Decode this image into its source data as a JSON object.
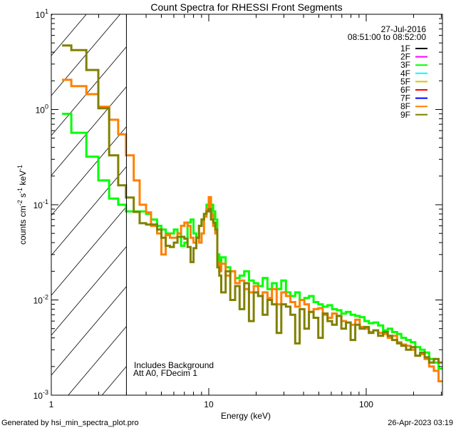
{
  "chart_data": {
    "type": "line",
    "title": "Count Spectra for RHESSI Front Segments",
    "xlabel": "Energy (keV)",
    "ylabel": "counts cm",
    "ylabel_parts": [
      "counts cm",
      "-2",
      " s",
      "-1",
      " keV",
      "-1"
    ],
    "xscale": "log",
    "yscale": "log",
    "xlim": [
      1,
      305
    ],
    "ylim": [
      0.001,
      10
    ],
    "x_ticks": [
      {
        "value": 1,
        "label": "1"
      },
      {
        "value": 10,
        "label": "10"
      },
      {
        "value": 100,
        "label": "100"
      }
    ],
    "y_ticks": [
      {
        "value": 10,
        "base": "10",
        "exp": "1"
      },
      {
        "value": 1,
        "base": "10",
        "exp": "0"
      },
      {
        "value": 0.1,
        "base": "10",
        "exp": "-1"
      },
      {
        "value": 0.01,
        "base": "10",
        "exp": "-2"
      },
      {
        "value": 0.001,
        "base": "10",
        "exp": "-3"
      }
    ],
    "date": "27-Jul-2016",
    "time_range": "08:51:00 to 08:52:00",
    "excluded_region_keV": [
      1,
      3
    ],
    "annotations": [
      "Includes Background",
      "Att A0, FDecim 1"
    ],
    "legend_placement": "top-right",
    "legend": [
      {
        "name": "1F",
        "color": "#000000"
      },
      {
        "name": "2F",
        "color": "#ff00ff"
      },
      {
        "name": "3F",
        "color": "#00ff00"
      },
      {
        "name": "4F",
        "color": "#00ffff"
      },
      {
        "name": "5F",
        "color": "#cccc00"
      },
      {
        "name": "6F",
        "color": "#ff0000"
      },
      {
        "name": "7F",
        "color": "#0000ff"
      },
      {
        "name": "8F",
        "color": "#ff8000"
      },
      {
        "name": "9F",
        "color": "#808000"
      }
    ],
    "energy_edges": [
      1.17,
      1.34,
      1.67,
      1.99,
      2.33,
      2.66,
      2.98,
      3.34,
      3.64,
      4.0,
      4.3,
      4.7,
      5.0,
      5.33,
      5.67,
      6.0,
      6.33,
      6.67,
      7.0,
      7.33,
      7.67,
      8.0,
      8.33,
      8.67,
      9.0,
      9.33,
      9.67,
      10.0,
      10.33,
      10.67,
      11.0,
      11.33,
      11.67,
      12.0,
      12.8,
      13.7,
      14.7,
      15.7,
      16.8,
      18,
      19.3,
      20.6,
      22,
      23.6,
      25.2,
      27,
      28.9,
      30.9,
      33,
      35.4,
      37.8,
      40.5,
      43.3,
      46.3,
      49.6,
      53,
      56.8,
      60.7,
      65,
      69.5,
      74.4,
      79.6,
      85.2,
      91,
      97.5,
      104,
      111,
      119,
      128,
      137,
      146,
      157,
      167,
      179,
      192,
      205,
      220,
      235,
      251,
      269,
      288,
      305
    ],
    "series": [
      {
        "name": "3F",
        "color": "#00ff00",
        "values": [
          0.9,
          0.57,
          0.32,
          0.18,
          0.116,
          0.1,
          0.085,
          0.085,
          0.085,
          0.08,
          0.07,
          0.06,
          0.055,
          0.05,
          0.05,
          0.055,
          0.05,
          0.037,
          0.04,
          0.065,
          0.07,
          0.05,
          0.045,
          0.06,
          0.07,
          0.08,
          0.1,
          0.115,
          0.1,
          0.085,
          0.07,
          0.03,
          0.025,
          0.028,
          0.022,
          0.02,
          0.017,
          0.018,
          0.02,
          0.016,
          0.015,
          0.014,
          0.017,
          0.013,
          0.015,
          0.013,
          0.016,
          0.012,
          0.011,
          0.012,
          0.01,
          0.0105,
          0.011,
          0.0095,
          0.009,
          0.0085,
          0.0088,
          0.008,
          0.0078,
          0.0072,
          0.0075,
          0.007,
          0.0068,
          0.0066,
          0.006,
          0.0057,
          0.0058,
          0.0054,
          0.0048,
          0.005,
          0.0046,
          0.0044,
          0.004,
          0.0038,
          0.0036,
          0.0032,
          0.003,
          0.0028,
          0.0024,
          0.0022,
          0.0019
        ]
      },
      {
        "name": "8F",
        "color": "#ff8000",
        "values": [
          2.05,
          1.76,
          1.45,
          1.07,
          0.78,
          0.55,
          0.33,
          0.18,
          0.1,
          0.083,
          0.06,
          0.05,
          0.03,
          0.048,
          0.045,
          0.045,
          0.05,
          0.06,
          0.065,
          0.06,
          0.045,
          0.04,
          0.045,
          0.04,
          0.05,
          0.075,
          0.09,
          0.12,
          0.08,
          0.06,
          0.05,
          0.025,
          0.02,
          0.024,
          0.018,
          0.02,
          0.015,
          0.016,
          0.013,
          0.012,
          0.014,
          0.011,
          0.012,
          0.0105,
          0.013,
          0.009,
          0.012,
          0.011,
          0.0095,
          0.0085,
          0.01,
          0.009,
          0.0075,
          0.008,
          0.0082,
          0.007,
          0.0065,
          0.0072,
          0.0068,
          0.006,
          0.0058,
          0.0055,
          0.0062,
          0.0052,
          0.005,
          0.0046,
          0.0048,
          0.0045,
          0.0044,
          0.004,
          0.0042,
          0.0036,
          0.0034,
          0.0033,
          0.003,
          0.0026,
          0.0027,
          0.0024,
          0.002,
          0.0018,
          0.0014
        ]
      },
      {
        "name": "9F",
        "color": "#808000",
        "values": [
          4.7,
          4.2,
          2.6,
          1.03,
          0.33,
          0.16,
          0.119,
          0.084,
          0.064,
          0.062,
          0.062,
          0.055,
          0.045,
          0.037,
          0.036,
          0.04,
          0.046,
          0.046,
          0.044,
          0.036,
          0.025,
          0.035,
          0.045,
          0.06,
          0.07,
          0.08,
          0.085,
          0.09,
          0.07,
          0.065,
          0.055,
          0.022,
          0.018,
          0.012,
          0.02,
          0.01,
          0.014,
          0.008,
          0.015,
          0.006,
          0.012,
          0.011,
          0.007,
          0.01,
          0.009,
          0.0045,
          0.009,
          0.0085,
          0.007,
          0.0035,
          0.008,
          0.005,
          0.0075,
          0.0065,
          0.004,
          0.0072,
          0.006,
          0.0055,
          0.0068,
          0.005,
          0.0058,
          0.0038,
          0.0055,
          0.005,
          0.0052,
          0.0045,
          0.0048,
          0.0042,
          0.0046,
          0.0042,
          0.0038,
          0.0035,
          0.0033,
          0.003,
          0.0032,
          0.0026,
          0.0028,
          0.0025,
          0.0022,
          0.0024,
          0.0022
        ]
      }
    ]
  },
  "footer": {
    "generated_by": "Generated by hsi_min_spectra_plot.pro",
    "timestamp": "26-Apr-2023 03:19"
  }
}
